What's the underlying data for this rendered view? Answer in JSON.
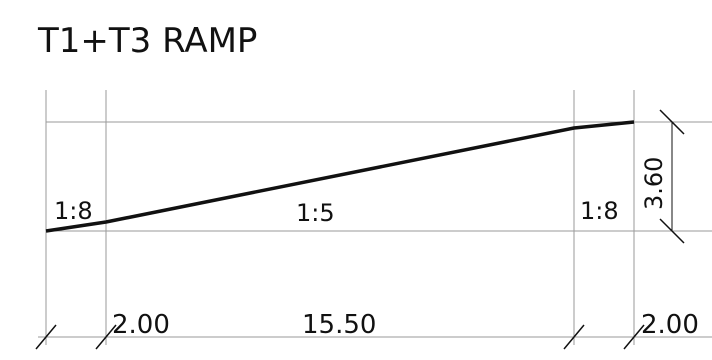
{
  "title": "T1+T3 RAMP",
  "slopes": {
    "left": "1:8",
    "middle": "1:5",
    "right": "1:8"
  },
  "dimensions": {
    "horizontal": {
      "left": "2.00",
      "middle": "15.50",
      "right": "2.00"
    },
    "vertical": {
      "rise": "3.60"
    }
  },
  "colors": {
    "ink": "#111111",
    "grid_line": "#9a9a9a"
  }
}
